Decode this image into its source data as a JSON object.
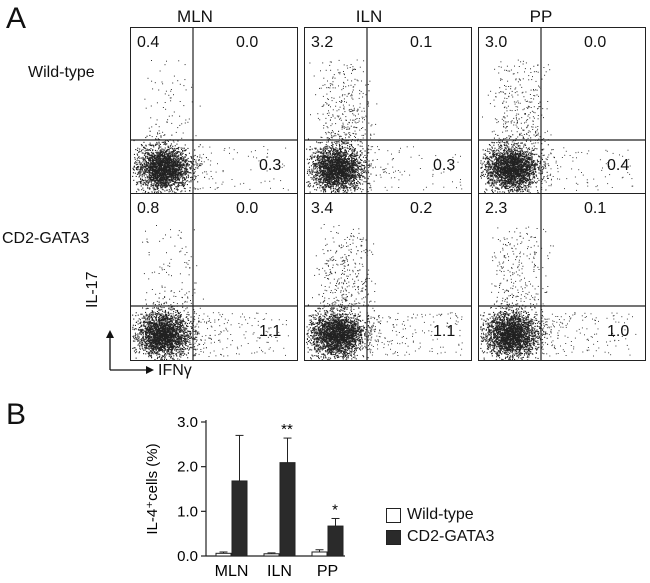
{
  "panel_labels": {
    "a": "A",
    "b": "B"
  },
  "columns": [
    "MLN",
    "ILN",
    "PP"
  ],
  "rows": [
    "Wild-type",
    "CD2-GATA3"
  ],
  "axes_a": {
    "y": "IL-17",
    "x": "IFNγ"
  },
  "chart_data": [
    {
      "type": "scatter",
      "title": "",
      "xlabel": "IFNγ",
      "ylabel": "IL-17",
      "panels": [
        {
          "row": "Wild-type",
          "column": "MLN",
          "quadrants": {
            "upper_left": "0.4",
            "upper_right": "0.0",
            "lower_right": "0.3"
          }
        },
        {
          "row": "Wild-type",
          "column": "ILN",
          "quadrants": {
            "upper_left": "3.2",
            "upper_right": "0.1",
            "lower_right": "0.3"
          }
        },
        {
          "row": "Wild-type",
          "column": "PP",
          "quadrants": {
            "upper_left": "3.0",
            "upper_right": "0.0",
            "lower_right": "0.4"
          }
        },
        {
          "row": "CD2-GATA3",
          "column": "MLN",
          "quadrants": {
            "upper_left": "0.8",
            "upper_right": "0.0",
            "lower_right": "1.1"
          }
        },
        {
          "row": "CD2-GATA3",
          "column": "ILN",
          "quadrants": {
            "upper_left": "3.4",
            "upper_right": "0.2",
            "lower_right": "1.1"
          }
        },
        {
          "row": "CD2-GATA3",
          "column": "PP",
          "quadrants": {
            "upper_left": "2.3",
            "upper_right": "0.1",
            "lower_right": "1.0"
          }
        }
      ]
    },
    {
      "type": "bar",
      "title": "",
      "categories": [
        "MLN",
        "ILN",
        "PP"
      ],
      "ylabel": "IL-4⁺cells (%)",
      "ylim": [
        0,
        3.0
      ],
      "yticks": [
        "0.0",
        "1.0",
        "2.0",
        "3.0"
      ],
      "series": [
        {
          "name": "Wild-type",
          "values": [
            0.06,
            0.05,
            0.09
          ],
          "errors": [
            0.03,
            0.02,
            0.05
          ],
          "color": "#ffffff"
        },
        {
          "name": "CD2-GATA3",
          "values": [
            1.68,
            2.09,
            0.67
          ],
          "errors": [
            1.02,
            0.55,
            0.17
          ],
          "color": "#2a2a2a"
        }
      ],
      "significance": [
        "",
        "**",
        "*"
      ],
      "legend_position": "right"
    }
  ]
}
